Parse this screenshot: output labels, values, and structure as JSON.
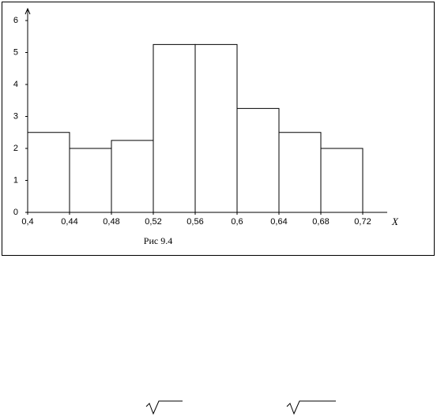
{
  "chart_data": {
    "type": "histogram",
    "caption": "Рис 9.4",
    "x_label": "X",
    "bins": [
      0.4,
      0.44,
      0.48,
      0.52,
      0.56,
      0.6,
      0.64,
      0.68,
      0.72
    ],
    "values": [
      2.5,
      2,
      2.25,
      5.25,
      5.25,
      3.25,
      2.5,
      2
    ],
    "color": "#ffffff",
    "xlim": [
      0.4,
      0.72
    ],
    "xticks": [
      {
        "value": 0.4,
        "label": "0,4"
      },
      {
        "value": 0.44,
        "label": "0,44"
      },
      {
        "value": 0.48,
        "label": "0,48"
      },
      {
        "value": 0.52,
        "label": "0,52"
      },
      {
        "value": 0.56,
        "label": "0,56"
      },
      {
        "value": 0.6,
        "label": "0,6"
      },
      {
        "value": 0.64,
        "label": "0,64"
      },
      {
        "value": 0.68,
        "label": "0,68"
      },
      {
        "value": 0.72,
        "label": "0,72"
      }
    ],
    "ylim": [
      0,
      6
    ],
    "yticks": [
      0,
      1,
      2,
      3,
      4,
      5,
      6
    ],
    "grid": false
  }
}
